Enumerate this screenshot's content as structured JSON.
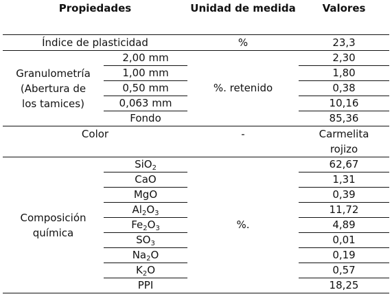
{
  "headers": {
    "properties": "Propiedades",
    "unit": "Unidad de medida",
    "values": "Valores"
  },
  "plasticity": {
    "label": "Índice de plasticidad",
    "unit": "%",
    "value": "23,3"
  },
  "granulometry": {
    "label_line1": "Granulometría",
    "label_line2": "(Abertura de",
    "label_line3": "los tamices)",
    "unit": "%. retenido",
    "rows": [
      {
        "size": "2,00 mm",
        "value": "2,30"
      },
      {
        "size": "1,00 mm",
        "value": "1,80"
      },
      {
        "size": "0,50 mm",
        "value": "0,38"
      },
      {
        "size": "0,063 mm",
        "value": "10,16"
      },
      {
        "size": "Fondo",
        "value": "85,36"
      }
    ]
  },
  "color": {
    "label": "Color",
    "unit": "-",
    "value_line1": "Carmelita",
    "value_line2": "rojizo"
  },
  "composition": {
    "label_line1": "Composición",
    "label_line2": "química",
    "unit": "%.",
    "rows": [
      {
        "el1": "SiO",
        "sub1": "2",
        "el2": "",
        "sub2": "",
        "value": "62,67"
      },
      {
        "el1": "CaO",
        "sub1": "",
        "el2": "",
        "sub2": "",
        "value": "1,31"
      },
      {
        "el1": "MgO",
        "sub1": "",
        "el2": "",
        "sub2": "",
        "value": "0,39"
      },
      {
        "el1": "Al",
        "sub1": "2",
        "el2": "O",
        "sub2": "3",
        "value": "11,72"
      },
      {
        "el1": "Fe",
        "sub1": "2",
        "el2": "O",
        "sub2": "3",
        "value": "4,89"
      },
      {
        "el1": "SO",
        "sub1": "3",
        "el2": "",
        "sub2": "",
        "value": "0,01"
      },
      {
        "el1": "Na",
        "sub1": "2",
        "el2": "O",
        "sub2": "",
        "value": "0,19"
      },
      {
        "el1": "K",
        "sub1": "2",
        "el2": "O",
        "sub2": "",
        "value": "0,57"
      },
      {
        "el1": "PPI",
        "sub1": "",
        "el2": "",
        "sub2": "",
        "value": "18,25"
      }
    ]
  }
}
